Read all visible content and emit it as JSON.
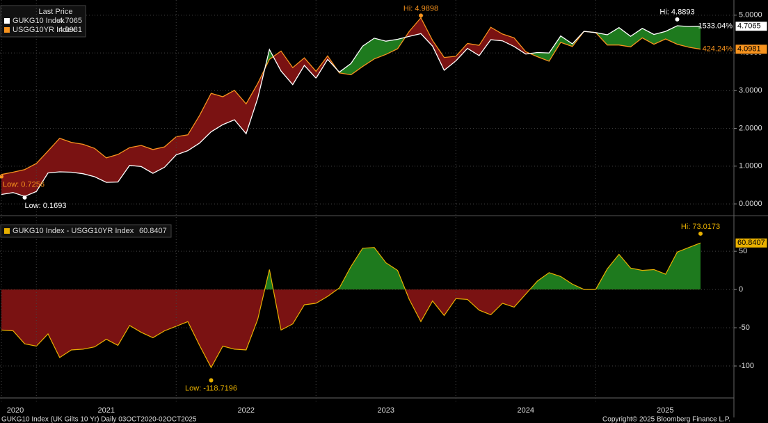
{
  "chart_data": [
    {
      "type": "line",
      "title": "Last Price",
      "series": [
        {
          "name": "GUKG10 Index",
          "color": "#ffffff",
          "change_label": "1533.04%",
          "values": [
            0.25,
            0.3,
            0.2,
            0.33,
            0.82,
            0.85,
            0.84,
            0.8,
            0.72,
            0.57,
            0.58,
            1.02,
            0.99,
            0.81,
            0.97,
            1.3,
            1.41,
            1.61,
            1.91,
            2.1,
            2.23,
            1.86,
            2.8,
            4.09,
            3.52,
            3.16,
            3.67,
            3.33,
            3.83,
            3.49,
            3.72,
            4.18,
            4.39,
            4.31,
            4.36,
            4.44,
            4.51,
            4.18,
            3.54,
            3.79,
            4.12,
            3.93,
            4.35,
            4.32,
            4.17,
            3.97,
            4.01,
            4.0,
            4.45,
            4.24,
            4.57,
            4.54,
            4.48,
            4.67,
            4.44,
            4.65,
            4.49,
            4.57,
            4.72,
            4.7,
            4.7065
          ],
          "annotations": [
            {
              "text": "Hi: 4.8893",
              "value": 4.8893,
              "kind": "max"
            },
            {
              "text": "Low: 0.1693",
              "value": 0.1693,
              "kind": "min"
            }
          ]
        },
        {
          "name": "USGG10YR Index",
          "color": "#f7931e",
          "change_label": "424.24%",
          "values": [
            0.78,
            0.84,
            0.91,
            1.07,
            1.4,
            1.74,
            1.63,
            1.58,
            1.47,
            1.22,
            1.31,
            1.49,
            1.55,
            1.44,
            1.51,
            1.78,
            1.83,
            2.34,
            2.93,
            2.84,
            3.01,
            2.65,
            3.19,
            3.83,
            4.05,
            3.61,
            3.87,
            3.51,
            3.92,
            3.47,
            3.42,
            3.64,
            3.84,
            3.96,
            4.11,
            4.57,
            4.93,
            4.33,
            3.88,
            3.91,
            4.25,
            4.2,
            4.68,
            4.5,
            4.4,
            4.03,
            3.9,
            3.78,
            4.28,
            4.17,
            4.57,
            4.54,
            4.21,
            4.21,
            4.16,
            4.4,
            4.23,
            4.37,
            4.23,
            4.15,
            4.0981
          ],
          "annotations": [
            {
              "text": "Hi: 4.9898",
              "value": 4.9898,
              "kind": "max"
            },
            {
              "text": "Low: 0.7256",
              "value": 0.7256,
              "kind": "min"
            }
          ]
        }
      ],
      "fill_above": "#1e7a1e",
      "fill_below": "#7a1212",
      "ylim": [
        -0.22,
        5.31
      ],
      "yticks": [
        {
          "value": 0,
          "label": "0.0000"
        },
        {
          "value": 1,
          "label": "1.0000"
        },
        {
          "value": 2,
          "label": "2.0000"
        },
        {
          "value": 3,
          "label": "3.0000"
        },
        {
          "value": 4,
          "label": "4.0000"
        },
        {
          "value": 5,
          "label": "5.0000"
        }
      ],
      "grid": true
    },
    {
      "type": "area",
      "categories": [
        "2020",
        null,
        null,
        "2021",
        null,
        null,
        null,
        null,
        null,
        null,
        null,
        null,
        null,
        null,
        null,
        "2022",
        null,
        null,
        null,
        null,
        null,
        null,
        null,
        null,
        null,
        null,
        null,
        "2023",
        null,
        null,
        null,
        null,
        null,
        null,
        null,
        null,
        null,
        null,
        null,
        "2024",
        null,
        null,
        null,
        null,
        null,
        null,
        null,
        null,
        null,
        null,
        null,
        "2025",
        null,
        null,
        null,
        null,
        null,
        null,
        null,
        null,
        null
      ],
      "series": [
        {
          "name": "GUKG10 Index - USGG10YR Index",
          "color": "#e8b000",
          "values": [
            -53,
            -54,
            -71,
            -74,
            -58,
            -89,
            -79,
            -78,
            -75,
            -65,
            -73,
            -47,
            -56,
            -63,
            -54,
            -48,
            -42,
            -73,
            -102,
            -74,
            -78,
            -79,
            -39,
            26,
            -53,
            -45,
            -20,
            -18,
            -9,
            2,
            30,
            54,
            55,
            35,
            25,
            -13,
            -42,
            -15,
            -34,
            -12,
            -13,
            -27,
            -33,
            -18,
            -23,
            -6,
            11,
            22,
            17,
            7,
            0,
            0,
            27,
            46,
            28,
            25,
            26,
            20,
            49,
            55,
            60.8407
          ],
          "annotations": [
            {
              "text": "Hi: 73.0173",
              "value": 73.0173,
              "kind": "max"
            },
            {
              "text": "Low: -118.7196",
              "value": -118.7196,
              "kind": "min"
            }
          ]
        }
      ],
      "fill_above": "#1e7a1e",
      "fill_below": "#7a1212",
      "ylim": [
        -140,
        92
      ],
      "yticks": [
        -100,
        -50,
        0,
        50
      ],
      "grid": true
    }
  ],
  "footer": {
    "left": "GUKG10 Index (UK Gilts 10 Yr) Daily 03OCT2020-02OCT2025",
    "right": "Copyright© 2025 Bloomberg Finance L.P."
  }
}
